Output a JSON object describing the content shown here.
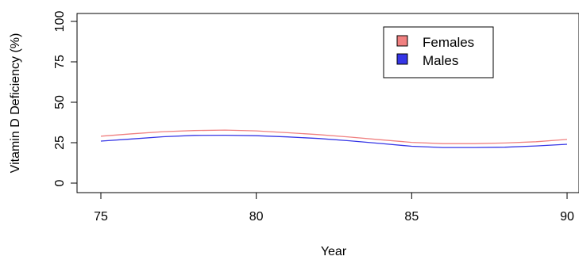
{
  "chart_data": {
    "type": "line",
    "title": "",
    "xlabel": "Year",
    "ylabel": "Vitamin D Deficiency (%)",
    "xlim": [
      75,
      90
    ],
    "ylim": [
      0,
      100
    ],
    "x_ticks": [
      "75",
      "80",
      "85",
      "90"
    ],
    "y_ticks": [
      "0",
      "25",
      "50",
      "75",
      "100"
    ],
    "grid": false,
    "legend_position": "top-right",
    "x": [
      75,
      76,
      77,
      78,
      79,
      80,
      81,
      82,
      83,
      84,
      85,
      86,
      87,
      88,
      89,
      90
    ],
    "series": [
      {
        "name": "Females",
        "color": "#f08080",
        "values": [
          29,
          30.5,
          31.8,
          32.5,
          32.8,
          32.3,
          31.2,
          30,
          28.5,
          26.8,
          25.2,
          24.4,
          24.4,
          24.8,
          25.6,
          27
        ]
      },
      {
        "name": "Males",
        "color": "#3535e6",
        "values": [
          26,
          27.3,
          28.7,
          29.5,
          29.6,
          29.3,
          28.6,
          27.6,
          26.2,
          24.5,
          22.8,
          22,
          22,
          22.2,
          23,
          24
        ]
      }
    ]
  }
}
